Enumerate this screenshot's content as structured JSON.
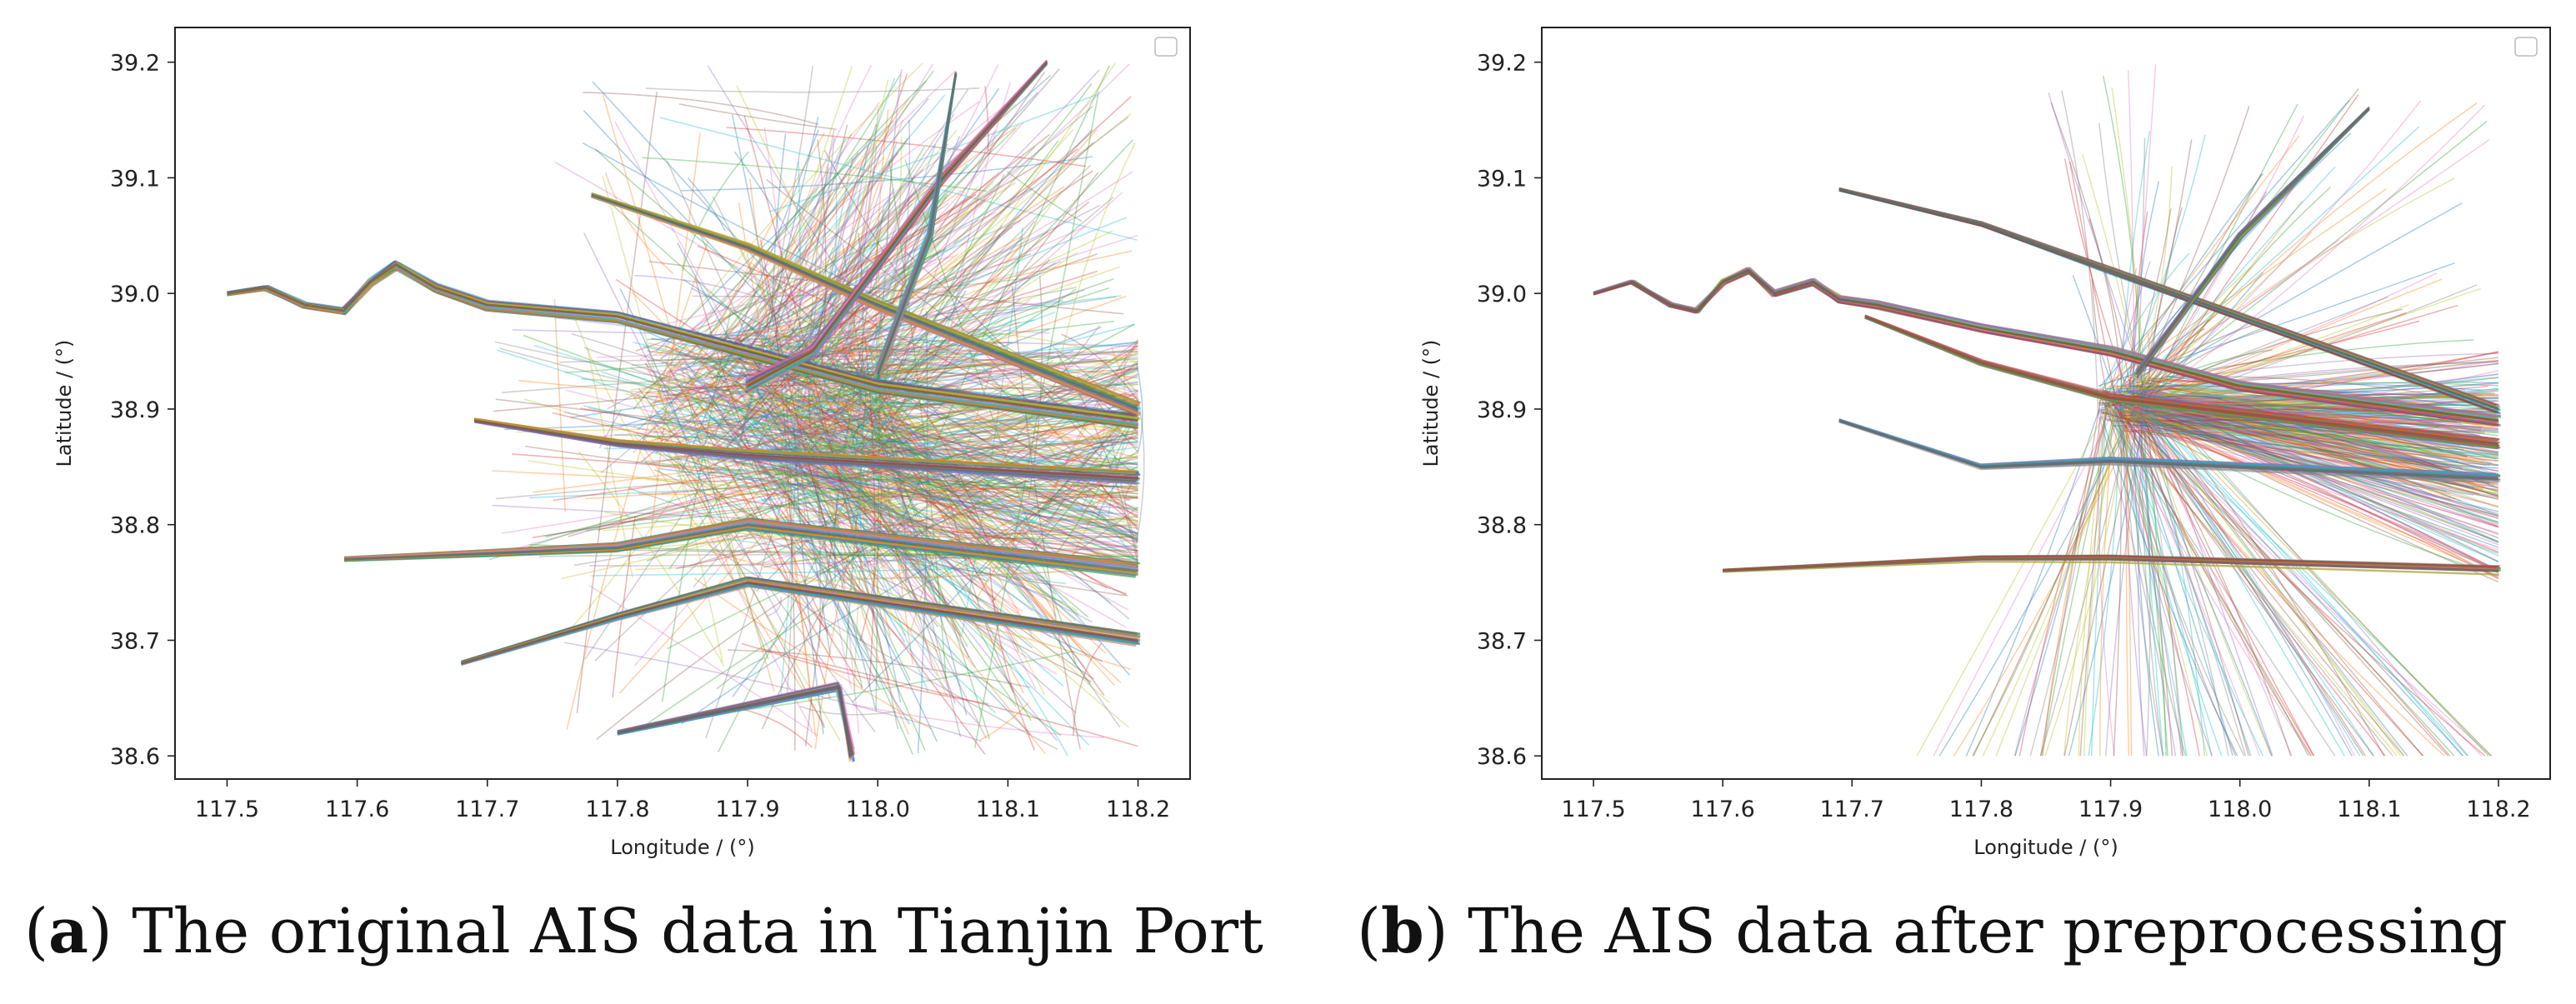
{
  "chart_data": [
    {
      "type": "line",
      "panel_letter": "a",
      "caption_text": ") The original AIS data in Tianjin Port",
      "xlabel": "Longitude / (°)",
      "ylabel": "Latitude / (°)",
      "xlim": [
        117.46,
        118.24
      ],
      "ylim": [
        38.58,
        39.23
      ],
      "xticks": [
        "117.5",
        "117.6",
        "117.7",
        "117.8",
        "117.9",
        "118.0",
        "118.1",
        "118.2"
      ],
      "yticks": [
        "38.6",
        "38.7",
        "38.8",
        "38.9",
        "39.0",
        "39.1",
        "39.2"
      ],
      "legend": "top-right (empty)",
      "grid": false,
      "density": "heavy",
      "trunk_routes": [
        [
          [
            117.5,
            39.0
          ],
          [
            117.53,
            39.005
          ],
          [
            117.56,
            38.99
          ],
          [
            117.59,
            38.985
          ],
          [
            117.61,
            39.01
          ],
          [
            117.63,
            39.025
          ],
          [
            117.66,
            39.005
          ],
          [
            117.7,
            38.99
          ],
          [
            117.8,
            38.98
          ],
          [
            117.9,
            38.95
          ],
          [
            118.0,
            38.92
          ],
          [
            118.2,
            38.89
          ]
        ],
        [
          [
            117.78,
            39.085
          ],
          [
            117.9,
            39.04
          ],
          [
            118.0,
            38.99
          ],
          [
            118.2,
            38.9
          ]
        ],
        [
          [
            117.69,
            38.89
          ],
          [
            117.8,
            38.87
          ],
          [
            117.9,
            38.86
          ],
          [
            118.2,
            38.84
          ]
        ],
        [
          [
            117.59,
            38.77
          ],
          [
            117.7,
            38.775
          ],
          [
            117.8,
            38.78
          ],
          [
            117.9,
            38.8
          ],
          [
            118.2,
            38.76
          ]
        ],
        [
          [
            117.68,
            38.68
          ],
          [
            117.8,
            38.72
          ],
          [
            117.9,
            38.75
          ],
          [
            118.2,
            38.7
          ]
        ],
        [
          [
            117.8,
            38.62
          ],
          [
            117.97,
            38.66
          ],
          [
            117.98,
            38.6
          ]
        ],
        [
          [
            118.13,
            39.2
          ],
          [
            118.05,
            39.1
          ],
          [
            117.95,
            38.95
          ],
          [
            117.9,
            38.92
          ]
        ],
        [
          [
            118.06,
            39.19
          ],
          [
            118.04,
            39.05
          ],
          [
            118.0,
            38.93
          ]
        ]
      ]
    },
    {
      "type": "line",
      "panel_letter": "b",
      "caption_text": ") The AIS data after preprocessing",
      "xlabel": "Longitude / (°)",
      "ylabel": "Latitude / (°)",
      "xlim": [
        117.46,
        118.24
      ],
      "ylim": [
        38.58,
        39.23
      ],
      "xticks": [
        "117.5",
        "117.6",
        "117.7",
        "117.8",
        "117.9",
        "118.0",
        "118.1",
        "118.2"
      ],
      "yticks": [
        "38.6",
        "38.7",
        "38.8",
        "38.9",
        "39.0",
        "39.1",
        "39.2"
      ],
      "legend": "top-right (empty)",
      "grid": false,
      "density": "light",
      "trunk_routes": [
        [
          [
            117.5,
            39.0
          ],
          [
            117.53,
            39.01
          ],
          [
            117.56,
            38.99
          ],
          [
            117.58,
            38.985
          ],
          [
            117.6,
            39.01
          ],
          [
            117.62,
            39.02
          ],
          [
            117.64,
            39.0
          ],
          [
            117.67,
            39.01
          ],
          [
            117.69,
            38.995
          ],
          [
            117.72,
            38.99
          ],
          [
            117.8,
            38.97
          ],
          [
            117.9,
            38.95
          ],
          [
            118.0,
            38.92
          ],
          [
            118.2,
            38.89
          ]
        ],
        [
          [
            117.69,
            39.09
          ],
          [
            117.8,
            39.06
          ],
          [
            117.9,
            39.02
          ],
          [
            118.0,
            38.98
          ],
          [
            118.2,
            38.9
          ]
        ],
        [
          [
            117.71,
            38.98
          ],
          [
            117.8,
            38.94
          ],
          [
            117.9,
            38.91
          ],
          [
            118.2,
            38.87
          ]
        ],
        [
          [
            117.69,
            38.89
          ],
          [
            117.8,
            38.85
          ],
          [
            117.9,
            38.855
          ],
          [
            118.2,
            38.84
          ]
        ],
        [
          [
            117.6,
            38.76
          ],
          [
            117.7,
            38.765
          ],
          [
            117.8,
            38.77
          ],
          [
            117.9,
            38.77
          ],
          [
            118.2,
            38.76
          ]
        ],
        [
          [
            118.1,
            39.16
          ],
          [
            118.0,
            39.05
          ],
          [
            117.92,
            38.93
          ]
        ]
      ]
    }
  ]
}
